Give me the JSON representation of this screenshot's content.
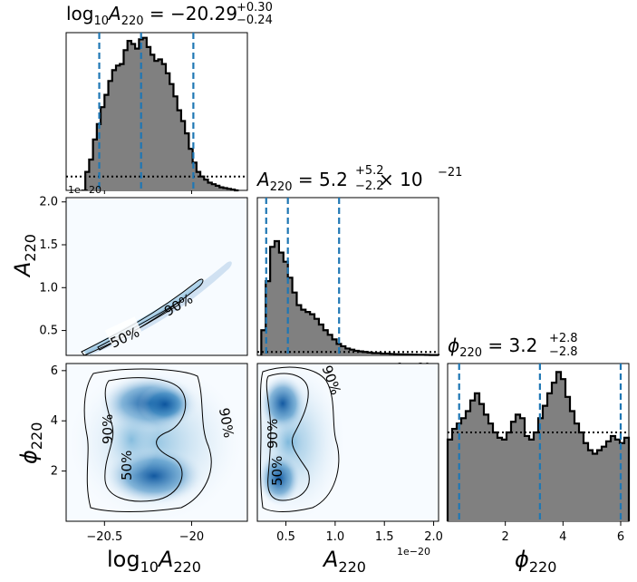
{
  "figure": {
    "titles": {
      "logA": {
        "base": "log",
        "sub1": "10",
        "var": "A",
        "sub2": "220",
        "eq": " = −20.29",
        "sup": "+0.30",
        "low": "−0.24"
      },
      "A": {
        "var": "A",
        "sub": "220",
        "eq": " = 5.2",
        "sup": "+5.2",
        "low": "−2.2",
        "tail": " × 10",
        "exp": "−21"
      },
      "phi": {
        "var": "ϕ",
        "sub": "220",
        "eq": " = 3.2",
        "sup": "+2.8",
        "low": "−2.8"
      }
    },
    "xlabels": {
      "logA": {
        "base": "log",
        "sub1": "10",
        "var": "A",
        "sub2": "220"
      },
      "A": {
        "var": "A",
        "sub": "220"
      },
      "phi": {
        "var": "ϕ",
        "sub": "220"
      }
    },
    "ylabels": {
      "A": {
        "var": "A",
        "sub": "220"
      },
      "phi": {
        "var": "ϕ",
        "sub": "220"
      }
    },
    "offsets": {
      "diag_logA": "1e−20",
      "diag_A": "1e−20",
      "bottom_A": "1e−20"
    },
    "contour_labels": {
      "p50": "50%",
      "p90": "90%"
    }
  },
  "chart_data": [
    {
      "type": "histogram",
      "name": "logA-marginal",
      "x_range": [
        -20.72,
        -19.68
      ],
      "quantile_lines": [
        -20.53,
        -20.29,
        -19.99
      ],
      "bins_x_start": -20.61,
      "bins_x_end": -19.73,
      "counts": [
        0.12,
        0.2,
        0.33,
        0.43,
        0.54,
        0.62,
        0.71,
        0.78,
        0.81,
        0.82,
        0.91,
        0.97,
        0.95,
        0.92,
        0.98,
        0.99,
        0.93,
        0.88,
        0.84,
        0.85,
        0.82,
        0.76,
        0.69,
        0.61,
        0.52,
        0.45,
        0.37,
        0.27,
        0.18,
        0.12,
        0.09,
        0.07,
        0.05,
        0.04,
        0.03,
        0.02,
        0.015,
        0.01,
        0.005,
        0.0
      ],
      "prior_level": 0.09,
      "ticks": [
        -20.5,
        -20.0
      ]
    },
    {
      "type": "histogram",
      "name": "A-marginal",
      "x_range": [
        2.1e-21,
        2.05e-20
      ],
      "quantile_lines": [
        3e-21,
        5.2e-21,
        1.04e-20
      ],
      "bins_x_start": 2.5e-21,
      "bins_x_end": 2.05e-20,
      "counts": [
        0.22,
        0.65,
        0.95,
        1.0,
        0.9,
        0.82,
        0.68,
        0.55,
        0.44,
        0.4,
        0.38,
        0.36,
        0.32,
        0.27,
        0.22,
        0.18,
        0.14,
        0.1,
        0.08,
        0.06,
        0.05,
        0.04,
        0.035,
        0.03,
        0.025,
        0.02,
        0.02,
        0.015,
        0.015,
        0.012,
        0.01,
        0.009,
        0.008,
        0.007,
        0.006,
        0.005,
        0.005,
        0.004,
        0.003,
        0.003
      ],
      "prior_level": 0.03,
      "ticks": [
        5e-21,
        1e-20,
        1.5e-20,
        2e-20
      ]
    },
    {
      "type": "histogram",
      "name": "phi-marginal",
      "x_range": [
        0.0,
        6.283
      ],
      "quantile_lines": [
        0.4,
        3.2,
        6.0
      ],
      "bins_x_start": 0.0,
      "bins_x_end": 6.283,
      "counts": [
        0.46,
        0.52,
        0.55,
        0.58,
        0.62,
        0.68,
        0.72,
        0.66,
        0.6,
        0.55,
        0.5,
        0.47,
        0.46,
        0.5,
        0.56,
        0.6,
        0.58,
        0.48,
        0.46,
        0.5,
        0.58,
        0.65,
        0.72,
        0.78,
        0.84,
        0.8,
        0.7,
        0.62,
        0.55,
        0.5,
        0.44,
        0.4,
        0.38,
        0.4,
        0.42,
        0.45,
        0.48,
        0.46,
        0.44,
        0.47
      ],
      "prior_level": 0.5,
      "ticks": [
        2,
        4,
        6
      ]
    },
    {
      "type": "contour2d",
      "name": "logA-vs-A",
      "x_range": [
        -20.72,
        -19.68
      ],
      "y_range": [
        2.1e-21,
        2.05e-20
      ],
      "yticks": [
        5e-21,
        1e-20,
        1.5e-20,
        2e-20
      ],
      "levels": [
        "50%",
        "90%"
      ]
    },
    {
      "type": "contour2d",
      "name": "logA-vs-phi",
      "x_range": [
        -20.72,
        -19.68
      ],
      "y_range": [
        0.0,
        6.283
      ],
      "yticks": [
        2,
        4,
        6
      ],
      "levels": [
        "50%",
        "90%"
      ]
    },
    {
      "type": "contour2d",
      "name": "A-vs-phi",
      "x_range": [
        2.1e-21,
        2.05e-20
      ],
      "y_range": [
        0.0,
        6.283
      ],
      "levels": [
        "50%",
        "90%"
      ]
    }
  ]
}
